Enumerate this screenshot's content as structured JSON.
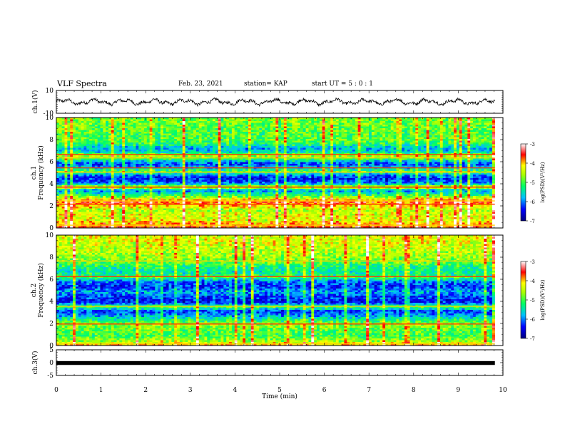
{
  "header": {
    "title": "VLF Spectra",
    "date": "Feb. 23, 2021",
    "station": "station= KAP",
    "start": "start  UT =   5  : 0   : 1"
  },
  "chart_data": [
    {
      "type": "line",
      "panel": "ch1-waveform",
      "ylabel": "ch.1(V)",
      "ylim": [
        -10,
        10
      ],
      "yticks": [
        "10",
        "-10"
      ],
      "xlim": [
        0,
        10
      ],
      "data_extent_x": [
        0,
        9.82
      ],
      "signal": "noisy oscillation centred near 0 V, amplitude roughly ±3 V"
    },
    {
      "type": "heatmap",
      "panel": "ch1-spectrogram",
      "ylabel": "ch.1 Frequency (kHz)",
      "ylim": [
        0,
        10
      ],
      "yticks": [
        "0",
        "2",
        "4",
        "6",
        "8",
        "10"
      ],
      "xlim": [
        0,
        10
      ],
      "data_extent_x": [
        0,
        9.82
      ],
      "colorbar": {
        "label": "log(PSD)(V²/Hz)",
        "range": [
          -7,
          -3
        ],
        "ticks": [
          "-3",
          "-4",
          "-5",
          "-6",
          "-7"
        ]
      },
      "frequency_profile_log_psd": [
        {
          "khz": 0.0,
          "v": -3.6
        },
        {
          "khz": 0.3,
          "v": -3.8
        },
        {
          "khz": 0.8,
          "v": -4.4
        },
        {
          "khz": 1.2,
          "v": -4.3
        },
        {
          "khz": 1.6,
          "v": -4.6
        },
        {
          "khz": 2.0,
          "v": -4.0
        },
        {
          "khz": 2.4,
          "v": -3.6
        },
        {
          "khz": 2.8,
          "v": -4.7
        },
        {
          "khz": 3.1,
          "v": -5.4
        },
        {
          "khz": 3.4,
          "v": -6.0
        },
        {
          "khz": 3.7,
          "v": -4.2
        },
        {
          "khz": 4.0,
          "v": -5.9
        },
        {
          "khz": 4.4,
          "v": -6.4
        },
        {
          "khz": 4.8,
          "v": -6.0
        },
        {
          "khz": 5.1,
          "v": -4.8
        },
        {
          "khz": 5.4,
          "v": -5.6
        },
        {
          "khz": 5.8,
          "v": -6.3
        },
        {
          "khz": 6.2,
          "v": -5.2
        },
        {
          "khz": 6.5,
          "v": -4.5
        },
        {
          "khz": 6.9,
          "v": -5.6
        },
        {
          "khz": 7.2,
          "v": -5.8
        },
        {
          "khz": 7.6,
          "v": -5.2
        },
        {
          "khz": 8.0,
          "v": -4.9
        },
        {
          "khz": 8.5,
          "v": -5.0
        },
        {
          "khz": 9.0,
          "v": -4.9
        },
        {
          "khz": 9.5,
          "v": -4.8
        },
        {
          "khz": 10.0,
          "v": -4.8
        }
      ]
    },
    {
      "type": "heatmap",
      "panel": "ch2-spectrogram",
      "ylabel": "ch.2 Frequency (kHz)",
      "ylim": [
        0,
        10
      ],
      "yticks": [
        "0",
        "2",
        "4",
        "6",
        "8",
        "10"
      ],
      "xlim": [
        0,
        10
      ],
      "data_extent_x": [
        0,
        9.82
      ],
      "colorbar": {
        "label": "log(PSD)(V²/Hz)",
        "range": [
          -7,
          -3
        ],
        "ticks": [
          "-3",
          "-4",
          "-5",
          "-6",
          "-7"
        ]
      },
      "frequency_profile_log_psd": [
        {
          "khz": 0.0,
          "v": -3.8
        },
        {
          "khz": 0.4,
          "v": -4.6
        },
        {
          "khz": 0.9,
          "v": -5.0
        },
        {
          "khz": 1.4,
          "v": -4.9
        },
        {
          "khz": 1.9,
          "v": -4.6
        },
        {
          "khz": 2.3,
          "v": -5.2
        },
        {
          "khz": 2.7,
          "v": -5.8
        },
        {
          "khz": 3.1,
          "v": -6.3
        },
        {
          "khz": 3.5,
          "v": -5.0
        },
        {
          "khz": 3.9,
          "v": -6.4
        },
        {
          "khz": 4.4,
          "v": -6.2
        },
        {
          "khz": 4.9,
          "v": -5.8
        },
        {
          "khz": 5.3,
          "v": -6.3
        },
        {
          "khz": 5.8,
          "v": -6.0
        },
        {
          "khz": 6.2,
          "v": -5.0
        },
        {
          "khz": 6.6,
          "v": -5.4
        },
        {
          "khz": 7.0,
          "v": -5.3
        },
        {
          "khz": 7.5,
          "v": -4.9
        },
        {
          "khz": 8.0,
          "v": -4.6
        },
        {
          "khz": 8.5,
          "v": -4.5
        },
        {
          "khz": 9.0,
          "v": -4.4
        },
        {
          "khz": 9.5,
          "v": -4.3
        },
        {
          "khz": 10.0,
          "v": -4.3
        }
      ]
    },
    {
      "type": "line",
      "panel": "ch3-waveform",
      "ylabel": "ch.3(V)",
      "ylim": [
        -5,
        5
      ],
      "yticks": [
        "5",
        "0",
        "-5"
      ],
      "xlim": [
        0,
        10
      ],
      "xlabel": "Time  (min)",
      "xticks": [
        "0",
        "1",
        "2",
        "3",
        "4",
        "5",
        "6",
        "7",
        "8",
        "9",
        "10"
      ],
      "data_extent_x": [
        0,
        9.82
      ],
      "signal": "dense rapid oscillation between about -0.9 V and 0.6 V"
    }
  ]
}
